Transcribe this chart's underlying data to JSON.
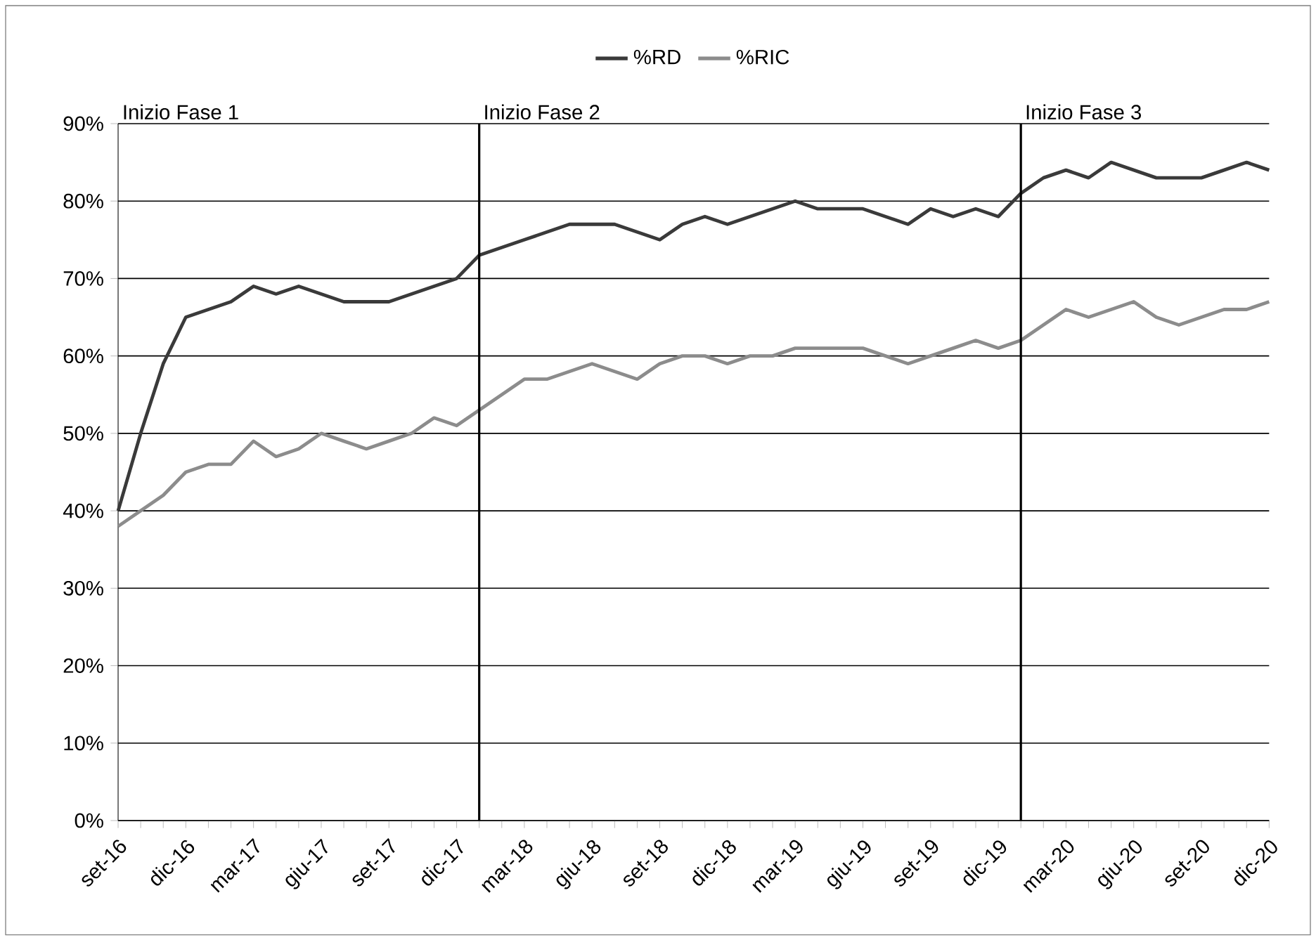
{
  "chart_data": {
    "type": "line",
    "x": [
      "2016-09",
      "2016-10",
      "2016-11",
      "2016-12",
      "2017-01",
      "2017-02",
      "2017-03",
      "2017-04",
      "2017-05",
      "2017-06",
      "2017-07",
      "2017-08",
      "2017-09",
      "2017-10",
      "2017-11",
      "2017-12",
      "2018-01",
      "2018-02",
      "2018-03",
      "2018-04",
      "2018-05",
      "2018-06",
      "2018-07",
      "2018-08",
      "2018-09",
      "2018-10",
      "2018-11",
      "2018-12",
      "2019-01",
      "2019-02",
      "2019-03",
      "2019-04",
      "2019-05",
      "2019-06",
      "2019-07",
      "2019-08",
      "2019-09",
      "2019-10",
      "2019-11",
      "2019-12",
      "2020-01",
      "2020-02",
      "2020-03",
      "2020-04",
      "2020-05",
      "2020-06",
      "2020-07",
      "2020-08",
      "2020-09",
      "2020-10",
      "2020-11",
      "2020-12"
    ],
    "series": [
      {
        "name": "%RD",
        "color": "#3a3a3a",
        "values": [
          40,
          50,
          59,
          65,
          66,
          67,
          69,
          68,
          69,
          68,
          67,
          67,
          67,
          68,
          69,
          70,
          73,
          74,
          75,
          76,
          77,
          77,
          77,
          76,
          75,
          77,
          78,
          77,
          78,
          79,
          80,
          79,
          79,
          79,
          78,
          77,
          79,
          78,
          79,
          78,
          81,
          83,
          84,
          83,
          85,
          84,
          83,
          83,
          83,
          84,
          85,
          84
        ]
      },
      {
        "name": "%RIC",
        "color": "#8c8c8c",
        "values": [
          38,
          40,
          42,
          45,
          46,
          46,
          49,
          47,
          48,
          50,
          49,
          48,
          49,
          50,
          52,
          51,
          53,
          55,
          57,
          57,
          58,
          59,
          58,
          57,
          59,
          60,
          60,
          59,
          60,
          60,
          61,
          61,
          61,
          61,
          60,
          59,
          60,
          61,
          62,
          61,
          62,
          64,
          66,
          65,
          66,
          67,
          65,
          64,
          65,
          66,
          66,
          67
        ]
      }
    ],
    "xlim": [
      "2016-09",
      "2020-12"
    ],
    "xticks": [
      {
        "value": "2016-09",
        "label": "set-16"
      },
      {
        "value": "2016-10",
        "label": null
      },
      {
        "value": "2016-11",
        "label": null
      },
      {
        "value": "2016-12",
        "label": "dic-16"
      },
      {
        "value": "2017-01",
        "label": null
      },
      {
        "value": "2017-02",
        "label": null
      },
      {
        "value": "2017-03",
        "label": "mar-17"
      },
      {
        "value": "2017-04",
        "label": null
      },
      {
        "value": "2017-05",
        "label": null
      },
      {
        "value": "2017-06",
        "label": "giu-17"
      },
      {
        "value": "2017-07",
        "label": null
      },
      {
        "value": "2017-08",
        "label": null
      },
      {
        "value": "2017-09",
        "label": "set-17"
      },
      {
        "value": "2017-10",
        "label": null
      },
      {
        "value": "2017-11",
        "label": null
      },
      {
        "value": "2017-12",
        "label": "dic-17"
      },
      {
        "value": "2018-01",
        "label": null
      },
      {
        "value": "2018-02",
        "label": null
      },
      {
        "value": "2018-03",
        "label": "mar-18"
      },
      {
        "value": "2018-04",
        "label": null
      },
      {
        "value": "2018-05",
        "label": null
      },
      {
        "value": "2018-06",
        "label": "giu-18"
      },
      {
        "value": "2018-07",
        "label": null
      },
      {
        "value": "2018-08",
        "label": null
      },
      {
        "value": "2018-09",
        "label": "set-18"
      },
      {
        "value": "2018-10",
        "label": null
      },
      {
        "value": "2018-11",
        "label": null
      },
      {
        "value": "2018-12",
        "label": "dic-18"
      },
      {
        "value": "2019-01",
        "label": null
      },
      {
        "value": "2019-02",
        "label": null
      },
      {
        "value": "2019-03",
        "label": "mar-19"
      },
      {
        "value": "2019-04",
        "label": null
      },
      {
        "value": "2019-05",
        "label": null
      },
      {
        "value": "2019-06",
        "label": "giu-19"
      },
      {
        "value": "2019-07",
        "label": null
      },
      {
        "value": "2019-08",
        "label": null
      },
      {
        "value": "2019-09",
        "label": "set-19"
      },
      {
        "value": "2019-10",
        "label": null
      },
      {
        "value": "2019-11",
        "label": null
      },
      {
        "value": "2019-12",
        "label": "dic-19"
      },
      {
        "value": "2020-01",
        "label": null
      },
      {
        "value": "2020-02",
        "label": null
      },
      {
        "value": "2020-03",
        "label": "mar-20"
      },
      {
        "value": "2020-04",
        "label": null
      },
      {
        "value": "2020-05",
        "label": null
      },
      {
        "value": "2020-06",
        "label": "giu-20"
      },
      {
        "value": "2020-07",
        "label": null
      },
      {
        "value": "2020-08",
        "label": null
      },
      {
        "value": "2020-09",
        "label": "set-20"
      },
      {
        "value": "2020-10",
        "label": null
      },
      {
        "value": "2020-11",
        "label": null
      },
      {
        "value": "2020-12",
        "label": "dic-20"
      }
    ],
    "ylim": [
      0,
      90
    ],
    "yticks": [
      {
        "value": 0,
        "label": "0%"
      },
      {
        "value": 10,
        "label": "10%"
      },
      {
        "value": 20,
        "label": "20%"
      },
      {
        "value": 30,
        "label": "30%"
      },
      {
        "value": 40,
        "label": "40%"
      },
      {
        "value": 50,
        "label": "50%"
      },
      {
        "value": 60,
        "label": "60%"
      },
      {
        "value": 70,
        "label": "70%"
      },
      {
        "value": 80,
        "label": "80%"
      },
      {
        "value": 90,
        "label": "90%"
      }
    ],
    "ref_lines": [
      {
        "axis": "x",
        "value": "2018-01",
        "label": "Inizio Fase 2",
        "color": "#000000"
      },
      {
        "axis": "x",
        "value": "2020-01",
        "label": "Inizio Fase 3",
        "color": "#000000"
      }
    ],
    "annotations": [
      "Inizio Fase 1"
    ],
    "grid": "y",
    "legend": "top",
    "line_style": "solid"
  }
}
